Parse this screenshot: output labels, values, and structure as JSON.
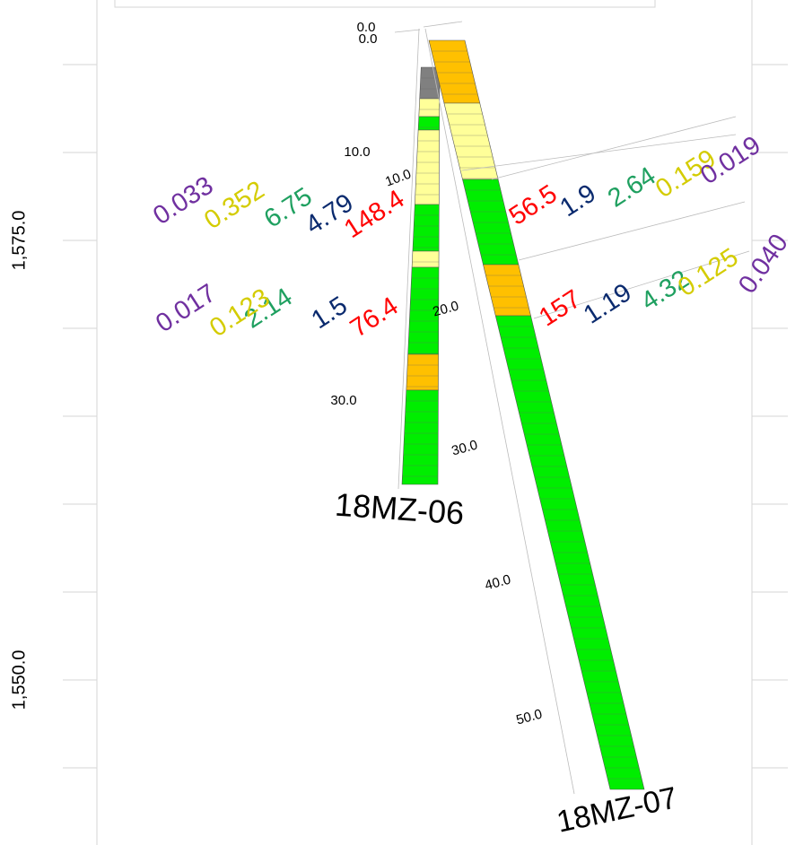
{
  "elevation_labels": [
    "1,575.0",
    "1,550.0"
  ],
  "holes": [
    {
      "name": "18MZ-06",
      "depth_labels": [
        "0.0",
        "10.0",
        "30.0"
      ],
      "assays": [
        [
          "148.4",
          "4.79",
          "6.75",
          "0.352",
          "0.033"
        ],
        [
          "76.4",
          "1.5",
          "2.14",
          "0.123",
          "0.017"
        ]
      ]
    },
    {
      "name": "18MZ-07",
      "depth_labels": [
        "0.0",
        "10.0",
        "20.0",
        "30.0",
        "40.0",
        "50.0"
      ],
      "assays": [
        [
          "56.5",
          "1.9",
          "2.64",
          "0.159",
          "0.019"
        ],
        [
          "157",
          "1.19",
          "4.32",
          "0.125",
          "0.040"
        ]
      ]
    }
  ]
}
